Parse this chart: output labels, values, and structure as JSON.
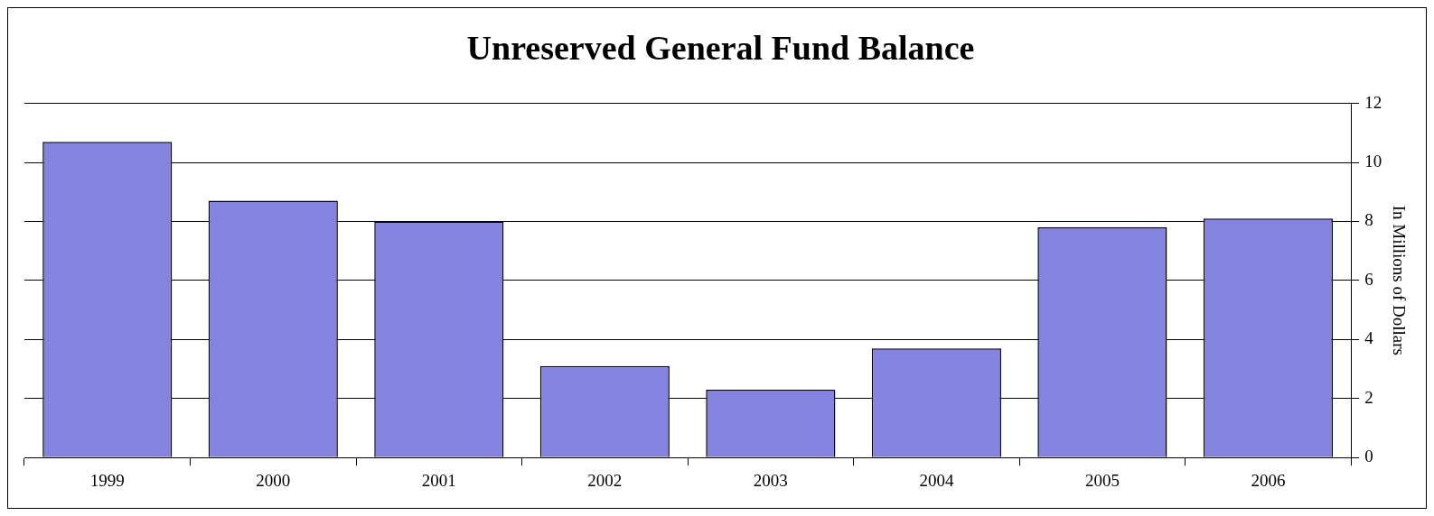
{
  "chart_data": {
    "type": "bar",
    "title": "Unreserved General Fund Balance",
    "ylabel": "In Millions of Dollars",
    "categories": [
      "1999",
      "2000",
      "2001",
      "2002",
      "2003",
      "2004",
      "2005",
      "2006"
    ],
    "values": [
      10.7,
      8.7,
      8.0,
      3.1,
      2.3,
      3.7,
      7.8,
      8.1
    ],
    "color": "#8484e0",
    "ylim": [
      0,
      12
    ],
    "yticks": [
      0,
      2,
      4,
      6,
      8,
      10,
      12
    ],
    "grid": "y",
    "legend": false
  }
}
